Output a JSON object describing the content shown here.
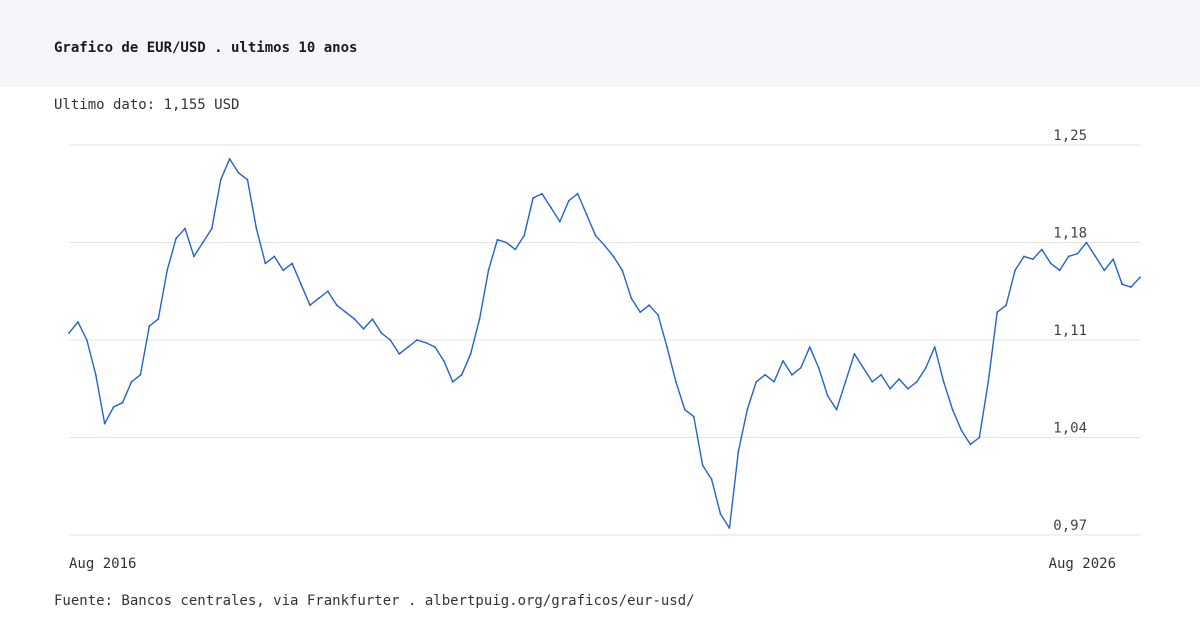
{
  "header": {
    "title": "Grafico de EUR/USD . ultimos 10 anos"
  },
  "latest_label": "Ultimo dato: 1,155 USD",
  "source": "Fuente: Bancos centrales, via Frankfurter . albertpuig.org/graficos/eur-usd/",
  "colors": {
    "line": "#2563c9",
    "grid": "#e3e3e3",
    "header_bg": "#f5f6f9"
  },
  "chart_data": {
    "type": "line",
    "title": "Grafico de EUR/USD . ultimos 10 anos",
    "xlabel": "",
    "ylabel": "",
    "ylim": [
      0.97,
      1.25
    ],
    "grid": true,
    "y_ticks": [
      {
        "value": 1.25,
        "label": "1,25"
      },
      {
        "value": 1.18,
        "label": "1,18"
      },
      {
        "value": 1.11,
        "label": "1,11"
      },
      {
        "value": 1.04,
        "label": "1,04"
      },
      {
        "value": 0.97,
        "label": "0,97"
      }
    ],
    "x_ticks": [
      {
        "value": "2016-08",
        "label": "Aug 2016"
      },
      {
        "value": "2026-08",
        "label": "Aug 2026"
      }
    ],
    "series": [
      {
        "x": [
          "2016-08",
          "2016-09",
          "2016-10",
          "2016-11",
          "2016-12",
          "2017-01",
          "2017-02",
          "2017-03",
          "2017-04",
          "2017-05",
          "2017-06",
          "2017-07",
          "2017-08",
          "2017-09",
          "2017-10",
          "2017-11",
          "2017-12",
          "2018-01",
          "2018-02",
          "2018-03",
          "2018-04",
          "2018-05",
          "2018-06",
          "2018-07",
          "2018-08",
          "2018-09",
          "2018-10",
          "2018-11",
          "2018-12",
          "2019-01",
          "2019-02",
          "2019-03",
          "2019-04",
          "2019-05",
          "2019-06",
          "2019-07",
          "2019-08",
          "2019-09",
          "2019-10",
          "2019-11",
          "2019-12",
          "2020-01",
          "2020-02",
          "2020-03",
          "2020-04",
          "2020-05",
          "2020-06",
          "2020-07",
          "2020-08",
          "2020-09",
          "2020-10",
          "2020-11",
          "2020-12",
          "2021-01",
          "2021-02",
          "2021-03",
          "2021-04",
          "2021-05",
          "2021-06",
          "2021-07",
          "2021-08",
          "2021-09",
          "2021-10",
          "2021-11",
          "2021-12",
          "2022-01",
          "2022-02",
          "2022-03",
          "2022-04",
          "2022-05",
          "2022-06",
          "2022-07",
          "2022-08",
          "2022-09",
          "2022-10",
          "2022-11",
          "2022-12",
          "2023-01",
          "2023-02",
          "2023-03",
          "2023-04",
          "2023-05",
          "2023-06",
          "2023-07",
          "2023-08",
          "2023-09",
          "2023-10",
          "2023-11",
          "2023-12",
          "2024-01",
          "2024-02",
          "2024-03",
          "2024-04",
          "2024-05",
          "2024-06",
          "2024-07",
          "2024-08",
          "2024-09",
          "2024-10",
          "2024-11",
          "2024-12",
          "2025-01",
          "2025-02",
          "2025-03",
          "2025-04",
          "2025-05",
          "2025-06",
          "2025-07",
          "2025-08",
          "2025-09",
          "2025-10",
          "2025-11",
          "2025-12",
          "2026-01",
          "2026-02",
          "2026-03",
          "2026-04",
          "2026-05",
          "2026-06",
          "2026-07",
          "2026-08"
        ],
        "values": [
          1.115,
          1.123,
          1.11,
          1.085,
          1.05,
          1.062,
          1.065,
          1.08,
          1.085,
          1.12,
          1.125,
          1.16,
          1.183,
          1.19,
          1.17,
          1.18,
          1.19,
          1.225,
          1.24,
          1.23,
          1.225,
          1.19,
          1.165,
          1.17,
          1.16,
          1.165,
          1.15,
          1.135,
          1.14,
          1.145,
          1.135,
          1.13,
          1.125,
          1.118,
          1.125,
          1.115,
          1.11,
          1.1,
          1.105,
          1.11,
          1.108,
          1.105,
          1.095,
          1.08,
          1.085,
          1.1,
          1.125,
          1.16,
          1.182,
          1.18,
          1.175,
          1.185,
          1.212,
          1.215,
          1.205,
          1.195,
          1.21,
          1.215,
          1.2,
          1.185,
          1.178,
          1.17,
          1.16,
          1.14,
          1.13,
          1.135,
          1.128,
          1.105,
          1.08,
          1.06,
          1.055,
          1.02,
          1.01,
          0.985,
          0.975,
          1.03,
          1.06,
          1.08,
          1.085,
          1.08,
          1.095,
          1.085,
          1.09,
          1.105,
          1.09,
          1.07,
          1.06,
          1.08,
          1.1,
          1.09,
          1.08,
          1.085,
          1.075,
          1.082,
          1.075,
          1.08,
          1.09,
          1.105,
          1.08,
          1.06,
          1.045,
          1.035,
          1.04,
          1.08,
          1.13,
          1.135,
          1.16,
          1.17,
          1.168,
          1.175,
          1.165,
          1.16,
          1.17,
          1.172,
          1.18,
          1.17,
          1.16,
          1.168,
          1.15,
          1.148,
          1.155
        ]
      }
    ]
  }
}
